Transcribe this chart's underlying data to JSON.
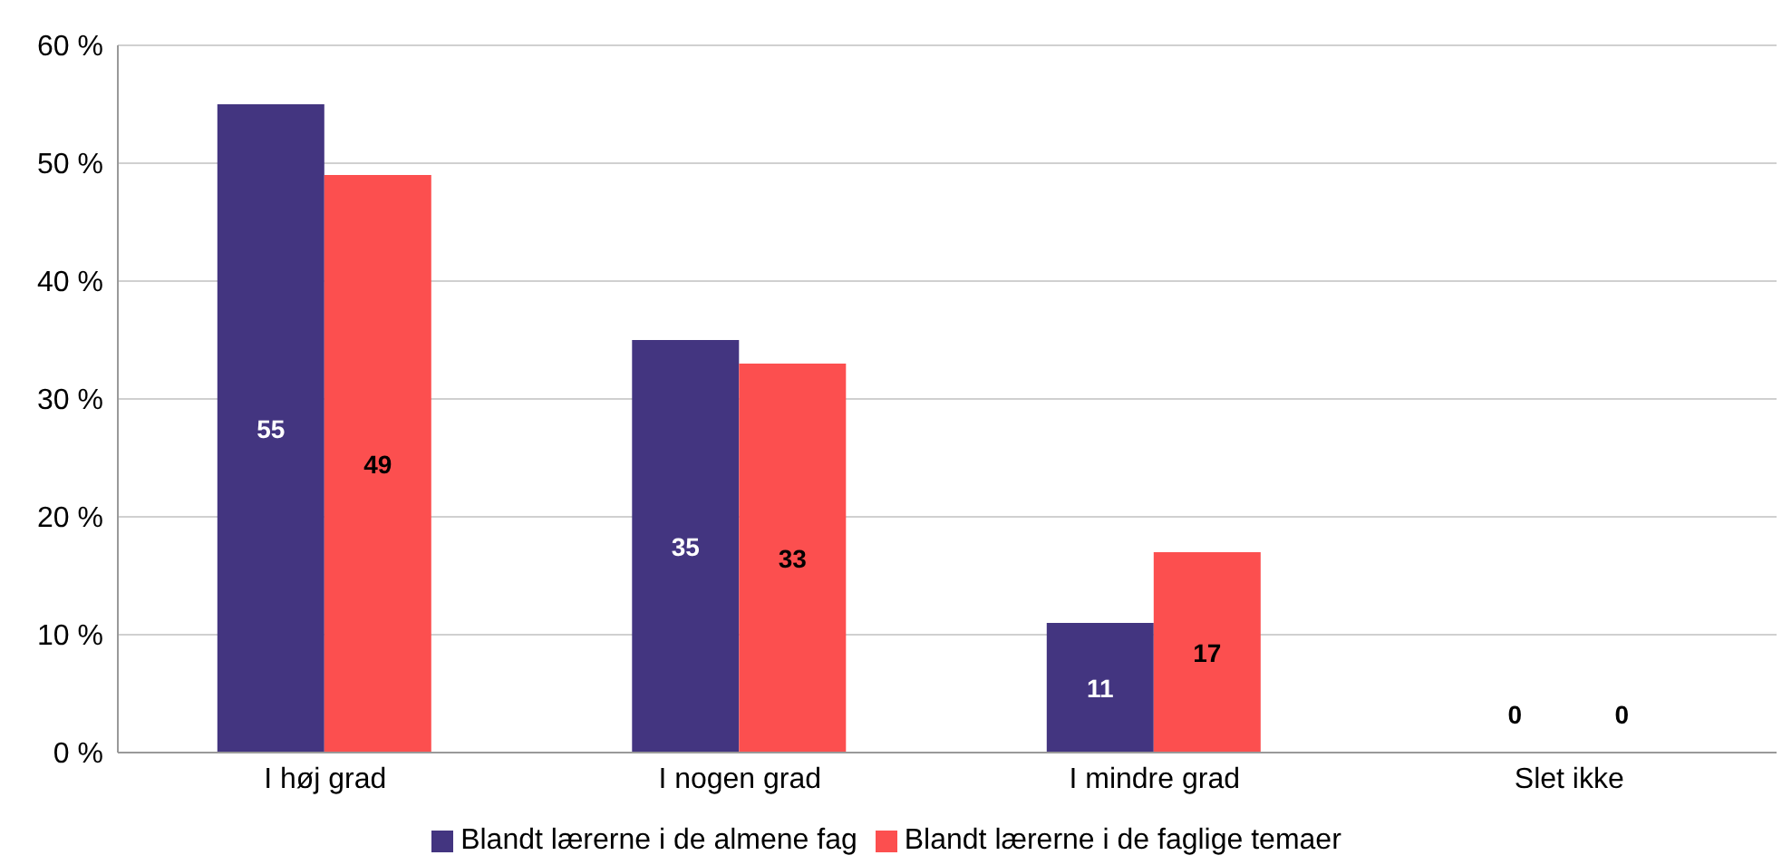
{
  "chart_data": {
    "type": "bar",
    "categories": [
      "I høj grad",
      "I nogen grad",
      "I mindre grad",
      "Slet ikke"
    ],
    "series": [
      {
        "name": "Blandt lærerne i de almene fag",
        "color": "#433580",
        "values": [
          55,
          35,
          11,
          0
        ]
      },
      {
        "name": "Blandt lærerne i de faglige temaer",
        "color": "#fc4f4f",
        "values": [
          49,
          33,
          17,
          0
        ]
      }
    ],
    "ylim": [
      0,
      60
    ],
    "yticks": [
      {
        "value": 0,
        "label": "0 %"
      },
      {
        "value": 10,
        "label": "10 %"
      },
      {
        "value": 20,
        "label": "20 %"
      },
      {
        "value": 30,
        "label": "30 %"
      },
      {
        "value": 40,
        "label": "40 %"
      },
      {
        "value": 50,
        "label": "50 %"
      },
      {
        "value": 60,
        "label": "60 %"
      }
    ],
    "grid": "y",
    "legend": "bottom",
    "data_labels": true
  }
}
